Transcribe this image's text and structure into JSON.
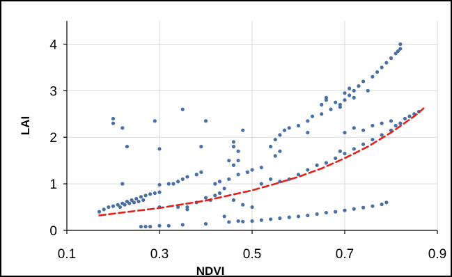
{
  "chart_data": {
    "type": "scatter",
    "title": "",
    "xlabel": "NDVI",
    "ylabel": "LAI",
    "xlim": [
      0.1,
      0.9
    ],
    "ylim": [
      0,
      4.5
    ],
    "x_ticks": [
      0.1,
      0.3,
      0.5,
      0.7,
      0.9
    ],
    "x_tick_labels": [
      "0.1",
      "0.3",
      "0.5",
      "0.7",
      "0.9"
    ],
    "y_ticks": [
      0,
      1,
      2,
      3,
      4
    ],
    "y_tick_labels": [
      "0",
      "1",
      "2",
      "3",
      "4"
    ],
    "grid": true,
    "legend": "none",
    "colors": {
      "points": "#4a6fa5",
      "fit_line": "#e0201b",
      "grid": "#d9d9d9",
      "axis": "#000000"
    },
    "series": [
      {
        "kind": "points",
        "points": [
          [
            0.17,
            0.4
          ],
          [
            0.18,
            0.45
          ],
          [
            0.19,
            0.5
          ],
          [
            0.2,
            0.52
          ],
          [
            0.21,
            0.55
          ],
          [
            0.22,
            0.58
          ],
          [
            0.23,
            0.62
          ],
          [
            0.24,
            0.65
          ],
          [
            0.25,
            0.68
          ],
          [
            0.26,
            0.72
          ],
          [
            0.27,
            0.75
          ],
          [
            0.28,
            0.78
          ],
          [
            0.29,
            0.8
          ],
          [
            0.3,
            0.82
          ],
          [
            0.215,
            0.5
          ],
          [
            0.225,
            0.55
          ],
          [
            0.235,
            0.58
          ],
          [
            0.245,
            0.6
          ],
          [
            0.255,
            0.62
          ],
          [
            0.265,
            0.65
          ],
          [
            0.3,
            0.98
          ],
          [
            0.33,
            1.0
          ],
          [
            0.34,
            1.05
          ],
          [
            0.35,
            1.1
          ],
          [
            0.36,
            1.15
          ],
          [
            0.38,
            1.2
          ],
          [
            0.39,
            1.25
          ],
          [
            0.42,
            1.0
          ],
          [
            0.43,
            1.05
          ],
          [
            0.45,
            1.1
          ],
          [
            0.47,
            1.2
          ],
          [
            0.49,
            1.25
          ],
          [
            0.5,
            1.3
          ],
          [
            0.52,
            1.35
          ],
          [
            0.54,
            1.1
          ],
          [
            0.56,
            1.05
          ],
          [
            0.58,
            1.1
          ],
          [
            0.6,
            1.2
          ],
          [
            0.62,
            1.3
          ],
          [
            0.64,
            1.4
          ],
          [
            0.66,
            1.45
          ],
          [
            0.68,
            1.55
          ],
          [
            0.7,
            1.65
          ],
          [
            0.72,
            1.75
          ],
          [
            0.74,
            1.85
          ],
          [
            0.76,
            1.95
          ],
          [
            0.78,
            2.05
          ],
          [
            0.8,
            2.15
          ],
          [
            0.81,
            2.25
          ],
          [
            0.82,
            2.3
          ],
          [
            0.83,
            2.4
          ],
          [
            0.84,
            2.45
          ],
          [
            0.85,
            2.5
          ],
          [
            0.86,
            2.55
          ],
          [
            0.55,
            1.95
          ],
          [
            0.56,
            2.05
          ],
          [
            0.57,
            2.15
          ],
          [
            0.58,
            2.2
          ],
          [
            0.6,
            2.25
          ],
          [
            0.62,
            2.35
          ],
          [
            0.63,
            2.45
          ],
          [
            0.65,
            2.5
          ],
          [
            0.67,
            2.6
          ],
          [
            0.69,
            2.7
          ],
          [
            0.7,
            2.8
          ],
          [
            0.71,
            2.9
          ],
          [
            0.72,
            3.0
          ],
          [
            0.73,
            3.1
          ],
          [
            0.74,
            3.2
          ],
          [
            0.76,
            3.3
          ],
          [
            0.77,
            3.4
          ],
          [
            0.78,
            3.5
          ],
          [
            0.79,
            3.6
          ],
          [
            0.8,
            3.7
          ],
          [
            0.81,
            3.8
          ],
          [
            0.815,
            3.85
          ],
          [
            0.82,
            3.9
          ],
          [
            0.82,
            4.0
          ],
          [
            0.66,
            2.85
          ],
          [
            0.68,
            2.75
          ],
          [
            0.69,
            2.65
          ],
          [
            0.7,
            2.95
          ],
          [
            0.71,
            3.05
          ],
          [
            0.72,
            2.85
          ],
          [
            0.75,
            3.0
          ],
          [
            0.7,
            2.1
          ],
          [
            0.72,
            2.2
          ],
          [
            0.74,
            2.15
          ],
          [
            0.76,
            2.25
          ],
          [
            0.78,
            2.3
          ],
          [
            0.8,
            2.35
          ],
          [
            0.26,
            0.08
          ],
          [
            0.27,
            0.08
          ],
          [
            0.28,
            0.08
          ],
          [
            0.3,
            0.1
          ],
          [
            0.32,
            0.1
          ],
          [
            0.35,
            0.12
          ],
          [
            0.4,
            0.14
          ],
          [
            0.45,
            0.18
          ],
          [
            0.48,
            0.19
          ],
          [
            0.5,
            0.2
          ],
          [
            0.52,
            0.22
          ],
          [
            0.54,
            0.24
          ],
          [
            0.56,
            0.26
          ],
          [
            0.58,
            0.28
          ],
          [
            0.6,
            0.3
          ],
          [
            0.62,
            0.32
          ],
          [
            0.64,
            0.35
          ],
          [
            0.66,
            0.38
          ],
          [
            0.68,
            0.4
          ],
          [
            0.7,
            0.43
          ],
          [
            0.72,
            0.46
          ],
          [
            0.74,
            0.49
          ],
          [
            0.76,
            0.52
          ],
          [
            0.78,
            0.56
          ],
          [
            0.79,
            0.6
          ],
          [
            0.2,
            2.4
          ],
          [
            0.2,
            2.3
          ],
          [
            0.22,
            2.2
          ],
          [
            0.23,
            1.8
          ],
          [
            0.29,
            2.35
          ],
          [
            0.3,
            1.75
          ],
          [
            0.35,
            2.6
          ],
          [
            0.39,
            1.8
          ],
          [
            0.4,
            2.35
          ],
          [
            0.48,
            2.15
          ],
          [
            0.46,
            1.9
          ],
          [
            0.46,
            1.8
          ],
          [
            0.47,
            1.7
          ],
          [
            0.45,
            1.5
          ],
          [
            0.46,
            1.4
          ],
          [
            0.47,
            1.5
          ],
          [
            0.22,
            1.0
          ],
          [
            0.32,
            1.0
          ],
          [
            0.3,
            0.5
          ],
          [
            0.34,
            0.5
          ],
          [
            0.36,
            0.5
          ],
          [
            0.4,
            0.7
          ],
          [
            0.41,
            0.65
          ],
          [
            0.43,
            0.8
          ],
          [
            0.44,
            0.9
          ],
          [
            0.46,
            0.65
          ],
          [
            0.48,
            0.55
          ],
          [
            0.5,
            0.5
          ],
          [
            0.55,
            1.6
          ],
          [
            0.56,
            1.7
          ],
          [
            0.54,
            1.8
          ],
          [
            0.62,
            2.1
          ],
          [
            0.69,
            1.7
          ],
          [
            0.65,
            2.7
          ],
          [
            0.66,
            2.8
          ],
          [
            0.44,
            0.3
          ],
          [
            0.47,
            0.2
          ],
          [
            0.36,
            0.45
          ],
          [
            0.38,
            0.6
          ],
          [
            0.42,
            0.75
          ],
          [
            0.52,
            1.0
          ]
        ]
      },
      {
        "kind": "trend",
        "points": [
          [
            0.17,
            0.32
          ],
          [
            0.25,
            0.42
          ],
          [
            0.3,
            0.48
          ],
          [
            0.35,
            0.56
          ],
          [
            0.4,
            0.64
          ],
          [
            0.45,
            0.75
          ],
          [
            0.5,
            0.86
          ],
          [
            0.55,
            1.0
          ],
          [
            0.6,
            1.15
          ],
          [
            0.65,
            1.33
          ],
          [
            0.7,
            1.55
          ],
          [
            0.75,
            1.8
          ],
          [
            0.8,
            2.1
          ],
          [
            0.85,
            2.45
          ],
          [
            0.87,
            2.62
          ]
        ]
      }
    ]
  }
}
